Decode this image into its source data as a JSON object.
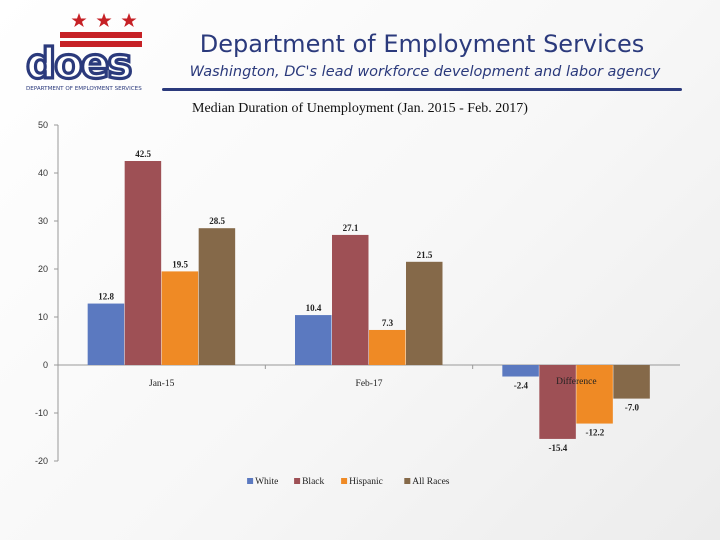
{
  "header": {
    "title": "Department of Employment Services",
    "subtitle": "Washington, DC's lead workforce development and labor agency",
    "logo_text": "DEPARTMENT OF EMPLOYMENT SERVICES",
    "logo_mark": "does"
  },
  "colors": {
    "White": "#5b79c0",
    "Black": "#9e5055",
    "Hispanic": "#ef8a25",
    "All Races": "#856949",
    "brand_blue": "#2b3a7c",
    "brand_red": "#c62126"
  },
  "chart_data": {
    "type": "bar",
    "title": "Median Duration of Unemployment (Jan. 2015 - Feb. 2017)",
    "categories": [
      "Jan-15",
      "Feb-17",
      "Difference"
    ],
    "series": [
      {
        "name": "White",
        "values": [
          12.8,
          10.4,
          -2.4
        ],
        "labels": [
          "12.8",
          "10.4",
          "-2.4"
        ]
      },
      {
        "name": "Black",
        "values": [
          42.5,
          27.1,
          -15.4
        ],
        "labels": [
          "42.5",
          "27.1",
          "-15.4"
        ]
      },
      {
        "name": "Hispanic",
        "values": [
          19.5,
          7.3,
          -12.2
        ],
        "labels": [
          "19.5",
          "7.3",
          "-12.2"
        ]
      },
      {
        "name": "All Races",
        "values": [
          28.5,
          21.5,
          -7.0
        ],
        "labels": [
          "28.5",
          "21.5",
          "-7.0"
        ]
      }
    ],
    "ylim": [
      -20,
      50
    ],
    "yticks": [
      -20,
      -10,
      0,
      10,
      20,
      30,
      40,
      50
    ],
    "ytick_labels": [
      "-20",
      "-10",
      "0",
      "10",
      "20",
      "30",
      "40",
      "50"
    ],
    "xlabel": "",
    "ylabel": "",
    "grid": false,
    "legend": "bottom"
  }
}
